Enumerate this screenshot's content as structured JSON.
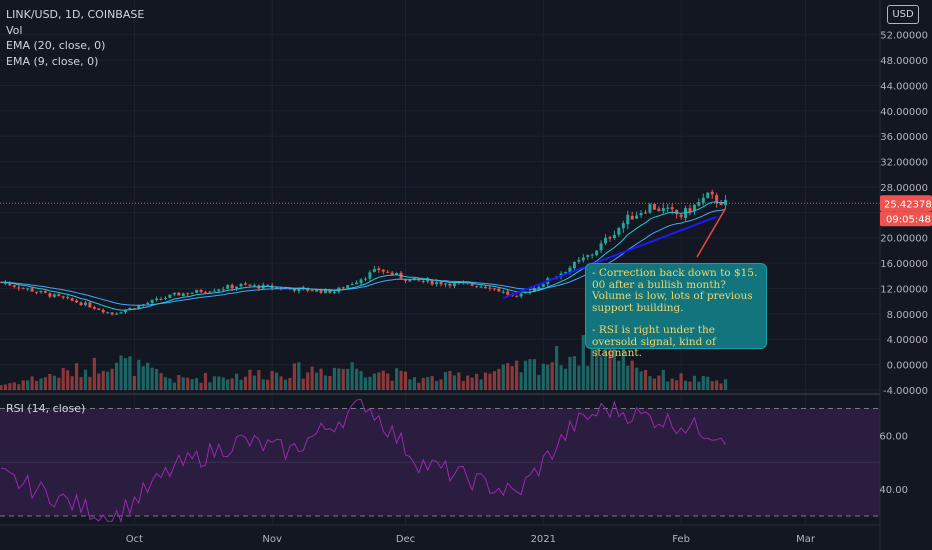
{
  "legend": {
    "symbol": "LINK/USD, 1D, COINBASE",
    "volume": "Vol",
    "ema20": "EMA (20, close, 0)",
    "ema9": "EMA (9, close, 0)",
    "rsi": "RSI (14, close)"
  },
  "currency_button": "USD",
  "price_axis": [
    "52.00000",
    "48.00000",
    "44.00000",
    "40.00000",
    "36.00000",
    "32.00000",
    "28.00000",
    "24.00000",
    "20.00000",
    "16.00000",
    "12.00000",
    "8.00000",
    "4.00000",
    "0.00000",
    "-4.00000"
  ],
  "rsi_axis": [
    "60.00",
    "40.00"
  ],
  "current_price": "25.42378",
  "countdown": "09:05:48",
  "time_axis": [
    "Oct",
    "Nov",
    "Dec",
    "2021",
    "Feb",
    "Mar"
  ],
  "annotation": {
    "line1": "- Correction back down to $15. 00 after a bullish month? Volume is low, lots of previous support building.",
    "line2": "- RSI is right under the oversold signal, kind of stagnant."
  },
  "colors": {
    "background": "#131722",
    "up": "#26a69a",
    "down": "#ef5350",
    "ema20": "#4aa3ff",
    "ema9": "#26c6da",
    "rsi_line": "#9c27b0",
    "rsi_band": "#2b1d3f",
    "trendline": "#1a1aff",
    "arrow": "#e84a3f",
    "note_bg": "#12747d",
    "note_text": "#f0d66e"
  },
  "chart_data": {
    "type": "candlestick",
    "symbol": "LINK/USD",
    "interval": "1D",
    "exchange": "COINBASE",
    "ylim": [
      -4,
      54
    ],
    "rsi_ylim": [
      27,
      75
    ],
    "rsi_levels": [
      70,
      30
    ],
    "last_price": 25.42378,
    "anchors": [
      {
        "date": "2020-09-01",
        "close": 13.0
      },
      {
        "date": "2020-09-20",
        "close": 9.5
      },
      {
        "date": "2020-09-26",
        "close": 8.0
      },
      {
        "date": "2020-10-10",
        "close": 11.0
      },
      {
        "date": "2020-10-25",
        "close": 12.5
      },
      {
        "date": "2020-11-15",
        "close": 11.5
      },
      {
        "date": "2020-11-25",
        "close": 15.0
      },
      {
        "date": "2020-12-02",
        "close": 13.3
      },
      {
        "date": "2020-12-20",
        "close": 12.3
      },
      {
        "date": "2020-12-26",
        "close": 10.5
      },
      {
        "date": "2021-01-05",
        "close": 14.5
      },
      {
        "date": "2021-01-12",
        "close": 17.5
      },
      {
        "date": "2021-01-20",
        "close": 23.0
      },
      {
        "date": "2021-01-25",
        "close": 25.0
      },
      {
        "date": "2021-02-01",
        "close": 23.5
      },
      {
        "date": "2021-02-07",
        "close": 26.5
      },
      {
        "date": "2021-02-11",
        "close": 25.42
      }
    ],
    "rsi_anchors": [
      {
        "date": "2020-09-01",
        "rsi": 45
      },
      {
        "date": "2020-09-26",
        "rsi": 29
      },
      {
        "date": "2020-10-10",
        "rsi": 48
      },
      {
        "date": "2020-10-25",
        "rsi": 58
      },
      {
        "date": "2020-11-05",
        "rsi": 54
      },
      {
        "date": "2020-11-22",
        "rsi": 72
      },
      {
        "date": "2020-12-04",
        "rsi": 50
      },
      {
        "date": "2020-12-26",
        "rsi": 38
      },
      {
        "date": "2021-01-08",
        "rsi": 64
      },
      {
        "date": "2021-01-15",
        "rsi": 70
      },
      {
        "date": "2021-01-27",
        "rsi": 66
      },
      {
        "date": "2021-02-11",
        "rsi": 60
      }
    ],
    "volume_profile": [
      {
        "date": "2020-09-01",
        "volume": 0.1
      },
      {
        "date": "2020-09-20",
        "volume": 0.4
      },
      {
        "date": "2020-09-26",
        "volume": 0.6
      },
      {
        "date": "2020-10-10",
        "volume": 0.2
      },
      {
        "date": "2020-11-20",
        "volume": 0.45
      },
      {
        "date": "2020-12-05",
        "volume": 0.2
      },
      {
        "date": "2020-12-26",
        "volume": 0.4
      },
      {
        "date": "2021-01-10",
        "volume": 0.75
      },
      {
        "date": "2021-01-15",
        "volume": 1.0
      },
      {
        "date": "2021-01-25",
        "volume": 0.3
      },
      {
        "date": "2021-02-11",
        "volume": 0.15
      }
    ],
    "trendline": [
      {
        "date": "2020-12-23",
        "price": 10.5
      },
      {
        "date": "2021-02-09",
        "price": 23.3
      }
    ]
  }
}
